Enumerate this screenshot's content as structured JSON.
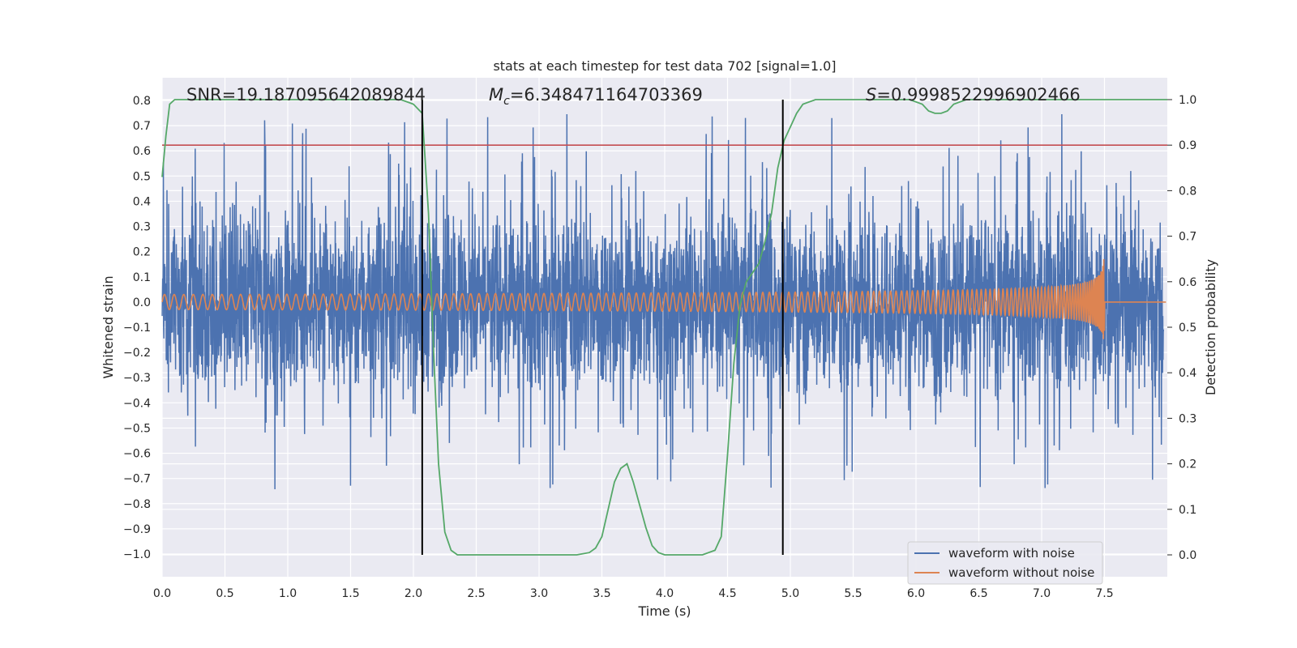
{
  "chart_data": {
    "type": "line",
    "title": "stats at each timestep for test data 702 [signal=1.0]",
    "xlabel": "Time (s)",
    "ylabel": "Whitened strain",
    "y2label": "Detection probability",
    "xlim": [
      0.0,
      8.0
    ],
    "ylim": [
      -1.09,
      0.89
    ],
    "y2lim": [
      -0.048,
      1.048
    ],
    "xticks": [
      "0.0",
      "0.5",
      "1.0",
      "1.5",
      "2.0",
      "2.5",
      "3.0",
      "3.5",
      "4.0",
      "4.5",
      "5.0",
      "5.5",
      "6.0",
      "6.5",
      "7.0",
      "7.5"
    ],
    "yticks": [
      "0.8",
      "0.7",
      "0.6",
      "0.5",
      "0.4",
      "0.3",
      "0.2",
      "0.1",
      "0.0",
      "−0.1",
      "−0.2",
      "−0.3",
      "−0.4",
      "−0.5",
      "−0.6",
      "−0.7",
      "−0.8",
      "−0.9",
      "−1.0"
    ],
    "y2ticks": [
      "1.0",
      "0.9",
      "0.8",
      "0.7",
      "0.6",
      "0.5",
      "0.4",
      "0.3",
      "0.2",
      "0.1",
      "0.0"
    ],
    "grid": true,
    "legend_position": "lower-right",
    "annotations": {
      "snr": "SNR=19.187095642089844",
      "mc": "=6.348471164703369",
      "s": "=0.9998522996902466"
    },
    "threshold_probability": 0.9,
    "vertical_markers": [
      2.07,
      4.94
    ],
    "series": [
      {
        "name": "waveform with noise",
        "color": "#4c72b0",
        "note_values": "dense noisy strain, typical amplitude 0.3 to 0.4, extremes between -1.0 and 0.8",
        "envelope_amplitude": 0.35
      },
      {
        "name": "waveform without noise",
        "color": "#dd8452",
        "chirp": {
          "t_start": 0.0,
          "t_merger": 7.5,
          "amplitude_start": 0.03,
          "amplitude_peak": 0.45,
          "amplitude_min_at_merger": -0.38
        }
      },
      {
        "name": "detection probability",
        "color": "#55a868",
        "axis": "right",
        "x": [
          0.0,
          0.03,
          0.06,
          0.1,
          0.15,
          0.2,
          0.5,
          1.0,
          1.5,
          1.9,
          2.0,
          2.07,
          2.12,
          2.16,
          2.2,
          2.25,
          2.3,
          2.35,
          2.4,
          2.6,
          3.0,
          3.2,
          3.3,
          3.4,
          3.45,
          3.5,
          3.55,
          3.6,
          3.65,
          3.7,
          3.75,
          3.8,
          3.85,
          3.9,
          3.95,
          4.0,
          4.1,
          4.2,
          4.3,
          4.4,
          4.45,
          4.5,
          4.55,
          4.6,
          4.65,
          4.7,
          4.75,
          4.8,
          4.85,
          4.9,
          4.95,
          5.0,
          5.05,
          5.1,
          5.2,
          5.5,
          5.8,
          5.95,
          6.05,
          6.1,
          6.15,
          6.2,
          6.25,
          6.3,
          6.4,
          6.6,
          7.0,
          7.5,
          8.0
        ],
        "y": [
          0.83,
          0.92,
          0.99,
          1.0,
          1.0,
          1.0,
          1.0,
          1.0,
          1.0,
          1.0,
          0.99,
          0.97,
          0.75,
          0.45,
          0.2,
          0.05,
          0.01,
          0.0,
          0.0,
          0.0,
          0.0,
          0.0,
          0.0,
          0.005,
          0.015,
          0.04,
          0.1,
          0.16,
          0.19,
          0.2,
          0.16,
          0.11,
          0.06,
          0.02,
          0.005,
          0.0,
          0.0,
          0.0,
          0.0,
          0.01,
          0.04,
          0.22,
          0.42,
          0.55,
          0.6,
          0.62,
          0.64,
          0.69,
          0.75,
          0.85,
          0.91,
          0.94,
          0.97,
          0.99,
          1.0,
          1.0,
          1.0,
          1.0,
          0.99,
          0.975,
          0.97,
          0.97,
          0.975,
          0.99,
          1.0,
          1.0,
          1.0,
          1.0,
          1.0
        ]
      },
      {
        "name": "detection threshold",
        "color": "#c44e52",
        "axis": "right",
        "value": 0.9
      }
    ]
  }
}
